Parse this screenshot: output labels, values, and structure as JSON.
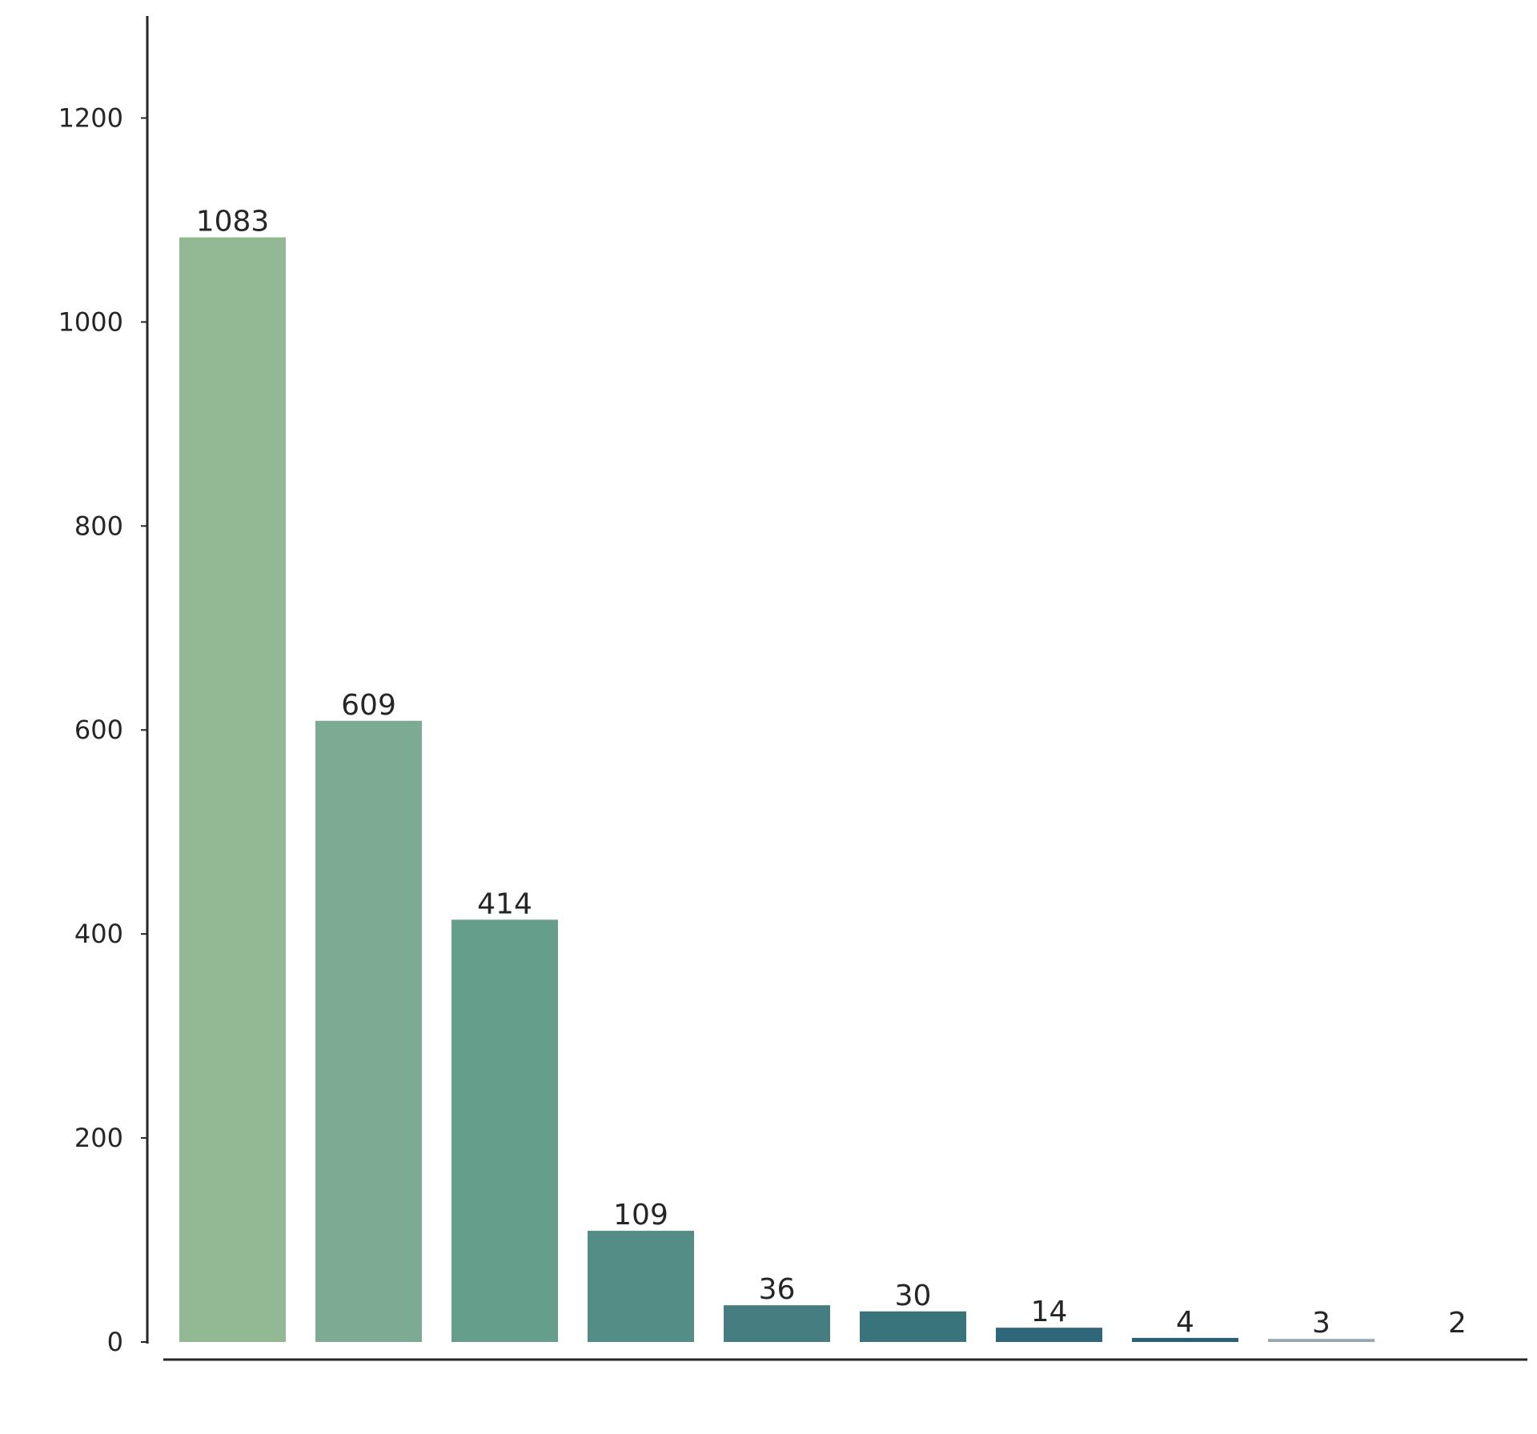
{
  "chart_data": {
    "type": "bar",
    "title": "",
    "xlabel": "",
    "ylabel": "",
    "ylim": [
      0,
      1300
    ],
    "yticks": [
      0,
      200,
      400,
      600,
      800,
      1000,
      1200
    ],
    "ytick_labels": [
      "0",
      "200",
      "400",
      "600",
      "800",
      "1000",
      "1200"
    ],
    "categories": [
      "",
      "",
      "",
      "",
      "",
      "",
      "",
      "",
      "",
      ""
    ],
    "values": [
      1083,
      609,
      414,
      109,
      36,
      30,
      14,
      4,
      3,
      2
    ],
    "data_labels": [
      "1083",
      "609",
      "414",
      "109",
      "36",
      "30",
      "14",
      "4",
      "3",
      "2"
    ],
    "colors": [
      "#93b994",
      "#7daa92",
      "#659e8b",
      "#538d86",
      "#457d80",
      "#39737c",
      "#2f6778",
      "#2a5f74",
      "#97a7b2",
      "#ffffff"
    ],
    "grid": false,
    "legend": "none",
    "spines": {
      "left": true,
      "bottom": true,
      "top": false,
      "right": false
    }
  }
}
